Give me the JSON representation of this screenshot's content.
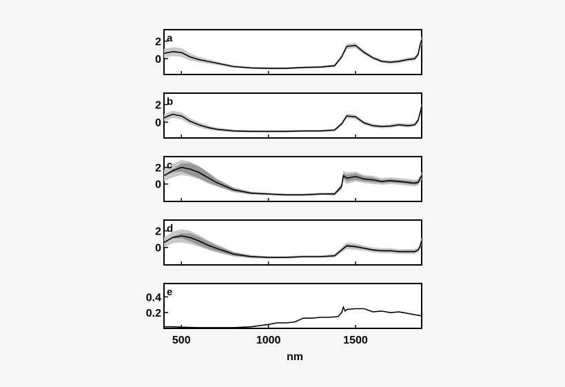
{
  "chart_data": [
    {
      "panel_label": "a",
      "type": "line",
      "xlim": [
        400,
        1880
      ],
      "ylim": [
        -1.8,
        3.3
      ],
      "yticks": [
        0,
        2
      ],
      "ytick_labels": [
        "0",
        "2"
      ],
      "x": [
        400,
        450,
        500,
        550,
        600,
        650,
        700,
        800,
        900,
        1000,
        1100,
        1200,
        1300,
        1380,
        1420,
        1450,
        1500,
        1550,
        1600,
        1650,
        1700,
        1750,
        1800,
        1840,
        1860,
        1870,
        1880
      ],
      "y": [
        0.6,
        0.8,
        0.7,
        0.2,
        -0.1,
        -0.3,
        -0.5,
        -0.9,
        -1.05,
        -1.1,
        -1.1,
        -1.0,
        -0.95,
        -0.8,
        0.2,
        1.4,
        1.5,
        0.7,
        0.1,
        -0.3,
        -0.4,
        -0.3,
        -0.1,
        0.0,
        0.5,
        1.5,
        2.1
      ],
      "spread_outer": [
        0.5,
        0.5,
        0.5,
        0.4,
        0.3,
        0.25,
        0.2,
        0.15,
        0.12,
        0.12,
        0.12,
        0.12,
        0.12,
        0.15,
        0.25,
        0.3,
        0.3,
        0.25,
        0.2,
        0.2,
        0.2,
        0.2,
        0.2,
        0.25,
        0.3,
        0.4,
        0.5
      ],
      "spread_inner": []
    },
    {
      "panel_label": "b",
      "type": "line",
      "xlim": [
        400,
        1880
      ],
      "ylim": [
        -1.8,
        3.3
      ],
      "yticks": [
        0,
        2
      ],
      "ytick_labels": [
        "0",
        "2"
      ],
      "x": [
        400,
        450,
        500,
        550,
        600,
        650,
        700,
        800,
        900,
        1000,
        1100,
        1200,
        1300,
        1380,
        1420,
        1450,
        1500,
        1550,
        1600,
        1650,
        1700,
        1750,
        1800,
        1840,
        1860,
        1870,
        1880
      ],
      "y": [
        0.5,
        0.9,
        0.7,
        0.1,
        -0.3,
        -0.6,
        -0.8,
        -1.0,
        -1.05,
        -1.05,
        -1.05,
        -1.0,
        -1.0,
        -0.9,
        -0.2,
        0.7,
        0.6,
        -0.1,
        -0.4,
        -0.5,
        -0.45,
        -0.3,
        -0.4,
        -0.3,
        0.2,
        1.0,
        1.8
      ],
      "spread_outer": [
        0.4,
        0.4,
        0.4,
        0.35,
        0.3,
        0.25,
        0.2,
        0.15,
        0.12,
        0.12,
        0.12,
        0.12,
        0.12,
        0.15,
        0.2,
        0.25,
        0.25,
        0.2,
        0.2,
        0.2,
        0.2,
        0.2,
        0.2,
        0.2,
        0.25,
        0.3,
        0.35
      ],
      "spread_inner": []
    },
    {
      "panel_label": "c",
      "type": "line",
      "xlim": [
        400,
        1880
      ],
      "ylim": [
        -2.1,
        3.3
      ],
      "yticks": [
        0,
        2
      ],
      "ytick_labels": [
        "0",
        "2"
      ],
      "x": [
        400,
        450,
        500,
        550,
        600,
        650,
        700,
        800,
        900,
        1000,
        1100,
        1200,
        1300,
        1380,
        1420,
        1430,
        1450,
        1500,
        1550,
        1600,
        1650,
        1700,
        1750,
        1800,
        1840,
        1860,
        1880
      ],
      "y": [
        1.0,
        1.6,
        2.0,
        1.8,
        1.4,
        0.8,
        0.2,
        -0.7,
        -1.1,
        -1.2,
        -1.3,
        -1.3,
        -1.2,
        -1.2,
        -0.3,
        1.0,
        0.7,
        0.9,
        0.6,
        0.5,
        0.3,
        0.4,
        0.3,
        0.2,
        0.1,
        0.2,
        1.0
      ],
      "spread_outer": [
        0.7,
        0.8,
        0.9,
        0.9,
        0.8,
        0.7,
        0.5,
        0.3,
        0.2,
        0.15,
        0.15,
        0.15,
        0.15,
        0.2,
        0.4,
        0.6,
        0.7,
        0.6,
        0.5,
        0.5,
        0.4,
        0.4,
        0.4,
        0.4,
        0.4,
        0.4,
        0.5
      ],
      "spread_inner": [
        0.0,
        0.2,
        0.5,
        0.7,
        0.7,
        0.6,
        0.4,
        0.2,
        0.1,
        0.05,
        0.05,
        0.05,
        0.05,
        0.1,
        0.2,
        0.3,
        0.4,
        0.4,
        0.3,
        0.3,
        0.2,
        0.2,
        0.2,
        0.2,
        0.2,
        0.2,
        0.2
      ]
    },
    {
      "panel_label": "d",
      "type": "line",
      "xlim": [
        400,
        1880
      ],
      "ylim": [
        -2.1,
        3.3
      ],
      "yticks": [
        0,
        2
      ],
      "ytick_labels": [
        "0",
        "2"
      ],
      "x": [
        400,
        450,
        500,
        550,
        600,
        650,
        700,
        800,
        900,
        1000,
        1100,
        1200,
        1300,
        1380,
        1420,
        1450,
        1500,
        1550,
        1600,
        1650,
        1700,
        1750,
        1800,
        1840,
        1860,
        1870,
        1880
      ],
      "y": [
        0.6,
        1.2,
        1.4,
        1.2,
        0.8,
        0.3,
        -0.1,
        -0.8,
        -1.1,
        -1.2,
        -1.2,
        -1.1,
        -1.1,
        -1.0,
        -0.3,
        0.2,
        0.1,
        -0.1,
        -0.3,
        -0.4,
        -0.4,
        -0.5,
        -0.5,
        -0.5,
        -0.3,
        0.1,
        0.8
      ],
      "spread_outer": [
        0.6,
        0.7,
        0.8,
        0.8,
        0.7,
        0.6,
        0.5,
        0.3,
        0.2,
        0.15,
        0.15,
        0.15,
        0.15,
        0.2,
        0.3,
        0.4,
        0.4,
        0.3,
        0.3,
        0.3,
        0.3,
        0.3,
        0.3,
        0.3,
        0.3,
        0.4,
        0.5
      ],
      "spread_inner": [
        0.0,
        0.1,
        0.3,
        0.5,
        0.5,
        0.45,
        0.35,
        0.2,
        0.1,
        0.05,
        0.05,
        0.05,
        0.05,
        0.05,
        0.1,
        0.15,
        0.15,
        0.1,
        0.1,
        0.1,
        0.1,
        0.1,
        0.1,
        0.1,
        0.1,
        0.1,
        0.1
      ]
    },
    {
      "panel_label": "e",
      "type": "line",
      "xlim": [
        400,
        1880
      ],
      "ylim": [
        0,
        0.57
      ],
      "yticks": [
        0.2,
        0.4
      ],
      "ytick_labels": [
        "0.2",
        "0.4"
      ],
      "xticks": [
        500,
        1000,
        1500
      ],
      "xtick_labels": [
        "500",
        "1000",
        "1500"
      ],
      "xlabel": "nm",
      "x": [
        400,
        450,
        500,
        600,
        700,
        800,
        900,
        1000,
        1050,
        1100,
        1150,
        1200,
        1250,
        1300,
        1350,
        1400,
        1420,
        1430,
        1440,
        1450,
        1500,
        1550,
        1600,
        1650,
        1700,
        1750,
        1800,
        1850,
        1880
      ],
      "y": [
        0.02,
        0.02,
        0.015,
        0.01,
        0.01,
        0.01,
        0.02,
        0.05,
        0.07,
        0.07,
        0.08,
        0.13,
        0.13,
        0.14,
        0.14,
        0.15,
        0.2,
        0.27,
        0.22,
        0.24,
        0.25,
        0.25,
        0.21,
        0.22,
        0.2,
        0.21,
        0.19,
        0.17,
        0.16
      ],
      "spread_outer": [],
      "spread_inner": []
    }
  ]
}
